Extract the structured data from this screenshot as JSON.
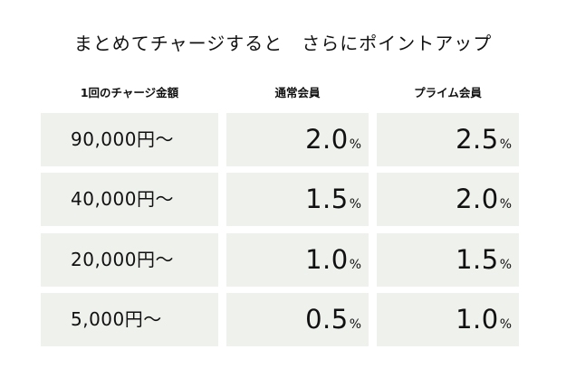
{
  "title": "まとめてチャージすると　さらにポイントアップ",
  "headers": {
    "amount": "1回のチャージ金額",
    "regular": "通常会員",
    "prime": "プライム会員"
  },
  "percent_sign": "%",
  "rows": [
    {
      "amount": "90,000円〜",
      "regular": "2.0",
      "prime": "2.5"
    },
    {
      "amount": "40,000円〜",
      "regular": "1.5",
      "prime": "2.0"
    },
    {
      "amount": "20,000円〜",
      "regular": "1.0",
      "prime": "1.5"
    },
    {
      "amount": "5,000円〜",
      "regular": "0.5",
      "prime": "1.0"
    }
  ],
  "colors": {
    "cell_background": "#eff1ed",
    "text": "#111111"
  }
}
